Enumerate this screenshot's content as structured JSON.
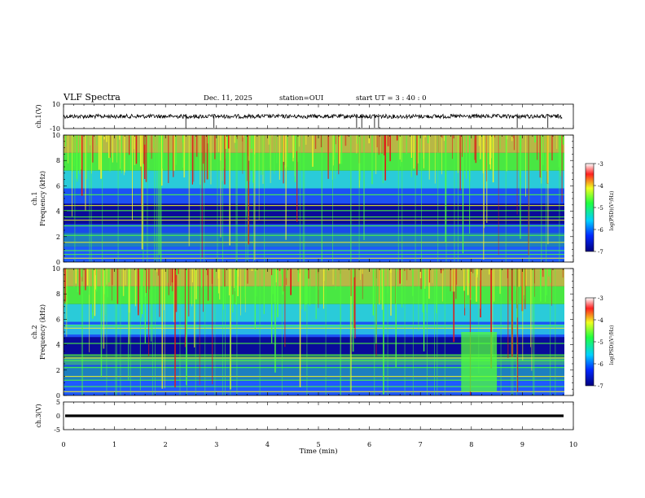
{
  "header": {
    "title": "VLF Spectra",
    "date": "Dec. 11, 2025",
    "station": "station=OUI",
    "start": "start  UT =   3 : 40 : 0"
  },
  "colors": {
    "deep": "#0a0a9a",
    "blue": "#1e5aff",
    "cyan": "#2ee0e0",
    "green": "#50ff3a",
    "yellow": "#f2f22a",
    "red": "#e01818",
    "trace": "#000000"
  },
  "chart_data": [
    {
      "type": "line",
      "name": "ch1-waveform",
      "ylabel": "ch.1(V)",
      "ylim": [
        -10,
        10
      ],
      "yticks": [
        "10",
        "-10"
      ],
      "baseline": 0,
      "spike_times_min": [
        2.4,
        2.95,
        5.75,
        5.85,
        6.1,
        6.18,
        8.9,
        9.5
      ],
      "xlim": [
        0,
        10
      ]
    },
    {
      "type": "heatmap",
      "name": "ch1-spectrogram",
      "ylabel": "ch.1",
      "ylabel2": "Frequency (kHz)",
      "ylim": [
        0,
        10
      ],
      "yticks": [
        "0",
        "2",
        "4",
        "6",
        "8",
        "10"
      ],
      "xlim": [
        0,
        10
      ],
      "colorbar": {
        "label": "log(PSD)(V²/Hz)",
        "range": [
          -7,
          -3
        ],
        "ticks": [
          "-3",
          "-4",
          "-5",
          "-6",
          "-7"
        ]
      }
    },
    {
      "type": "heatmap",
      "name": "ch2-spectrogram",
      "ylabel": "ch.2",
      "ylabel2": "Frequency (kHz)",
      "ylim": [
        0,
        10
      ],
      "yticks": [
        "0",
        "2",
        "4",
        "6",
        "8",
        "10"
      ],
      "xlim": [
        0,
        10
      ],
      "anomaly_window_min": [
        7.8,
        8.5
      ],
      "colorbar": {
        "label": "log(PSD)(V²/Hz)",
        "range": [
          -7,
          -3
        ],
        "ticks": [
          "-3",
          "-4",
          "-5",
          "-6",
          "-7"
        ]
      }
    },
    {
      "type": "line",
      "name": "ch3-waveform",
      "ylabel": "ch.3(V)",
      "ylim": [
        -5,
        5
      ],
      "yticks": [
        "5",
        "0",
        "-5"
      ],
      "baseline": -1.2,
      "xlim": [
        0,
        10
      ]
    }
  ],
  "xaxis": {
    "label": "Time  (min)",
    "ticks": [
      "0",
      "1",
      "2",
      "3",
      "4",
      "5",
      "6",
      "7",
      "8",
      "9",
      "10"
    ]
  }
}
